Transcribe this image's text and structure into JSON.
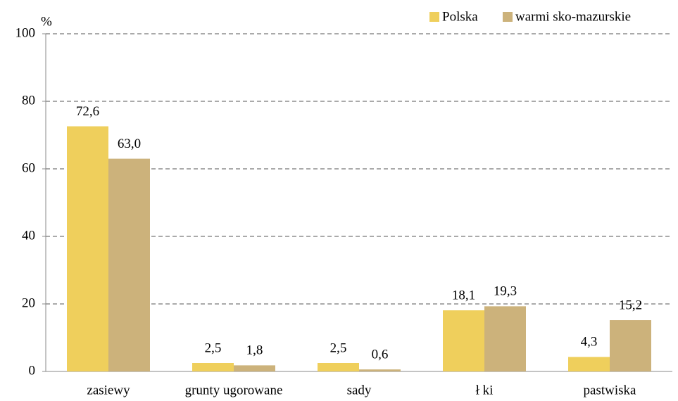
{
  "chart_data": {
    "type": "bar",
    "y_label": "%",
    "categories": [
      "zasiewy",
      "grunty ugorowane",
      "sady",
      "ł ki",
      "pastwiska"
    ],
    "series": [
      {
        "name": "Polska",
        "color": "#efcf5c",
        "values": [
          72.6,
          2.5,
          2.5,
          18.1,
          4.3
        ],
        "value_labels": [
          "72,6",
          "2,5",
          "2,5",
          "18,1",
          "4,3"
        ]
      },
      {
        "name": "warmi sko-mazurskie",
        "color": "#ccb27b",
        "values": [
          63.0,
          1.8,
          0.6,
          19.3,
          15.2
        ],
        "value_labels": [
          "63,0",
          "1,8",
          "0,6",
          "19,3",
          "15,2"
        ]
      }
    ],
    "ylim": [
      0,
      100
    ],
    "yticks": [
      0,
      20,
      40,
      60,
      80,
      100
    ],
    "grid": true,
    "legend": "top-right"
  }
}
